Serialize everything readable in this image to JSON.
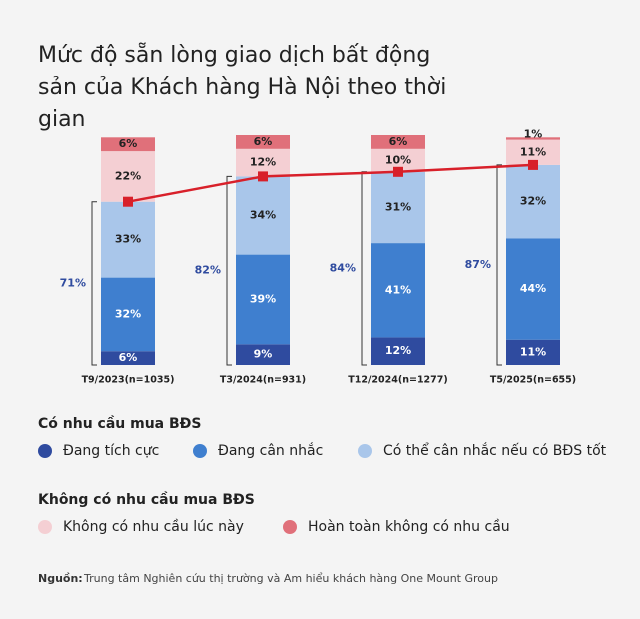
{
  "chart_data": {
    "type": "stacked_bar_line",
    "title": "Mức độ sẵn lòng giao dịch bất động sản của Khách hàng Hà Nội theo thời gian",
    "categories": [
      "T9/2023(n=1035)",
      "T3/2024(n=931)",
      "T12/2024(n=1277)",
      "T5/2025(n=655)"
    ],
    "ylim": [
      0,
      100
    ],
    "series": [
      {
        "name": "Đang tích cực",
        "color": "#2f4b9f",
        "label_color": "#ffffff",
        "values": [
          6,
          9,
          12,
          11
        ],
        "value_labels": [
          "6%",
          "9%",
          "12%",
          "11%"
        ]
      },
      {
        "name": "Đang cân nhắc",
        "color": "#3f7fcf",
        "label_color": "#ffffff",
        "values": [
          32,
          39,
          41,
          44
        ],
        "value_labels": [
          "32%",
          "39%",
          "41%",
          "44%"
        ]
      },
      {
        "name": "Có thể cân nhắc nếu có BĐS tốt",
        "color": "#a9c6ea",
        "label_color": "#222222",
        "values": [
          33,
          34,
          31,
          32
        ],
        "value_labels": [
          "33%",
          "34%",
          "31%",
          "32%"
        ]
      },
      {
        "name": "Không có nhu cầu lúc này",
        "color": "#f4cfd3",
        "label_color": "#222222",
        "values": [
          22,
          12,
          10,
          11
        ],
        "value_labels": [
          "22%",
          "12%",
          "10%",
          "11%"
        ]
      },
      {
        "name": "Hoàn toàn không có nhu cầu",
        "color": "#e0707a",
        "label_color": "#222222",
        "values": [
          6,
          6,
          6,
          1
        ],
        "value_labels": [
          "6%",
          "6%",
          "6%",
          "1%"
        ]
      }
    ],
    "line": {
      "color": "#d8202a",
      "values": [
        71,
        82,
        84,
        87
      ],
      "value_labels": [
        "71%",
        "82%",
        "84%",
        "87%"
      ],
      "label_color": "#2f4b9f"
    },
    "legend_groups": [
      {
        "title": "Có nhu cầu mua BĐS",
        "series": [
          0,
          1,
          2
        ]
      },
      {
        "title": "Không có nhu cầu mua BĐS",
        "series": [
          3,
          4
        ]
      }
    ],
    "source_label": "Nguồn:",
    "source": "Trung tâm Nghiên cứu thị trường và Am hiểu khách hàng One Mount Group"
  }
}
